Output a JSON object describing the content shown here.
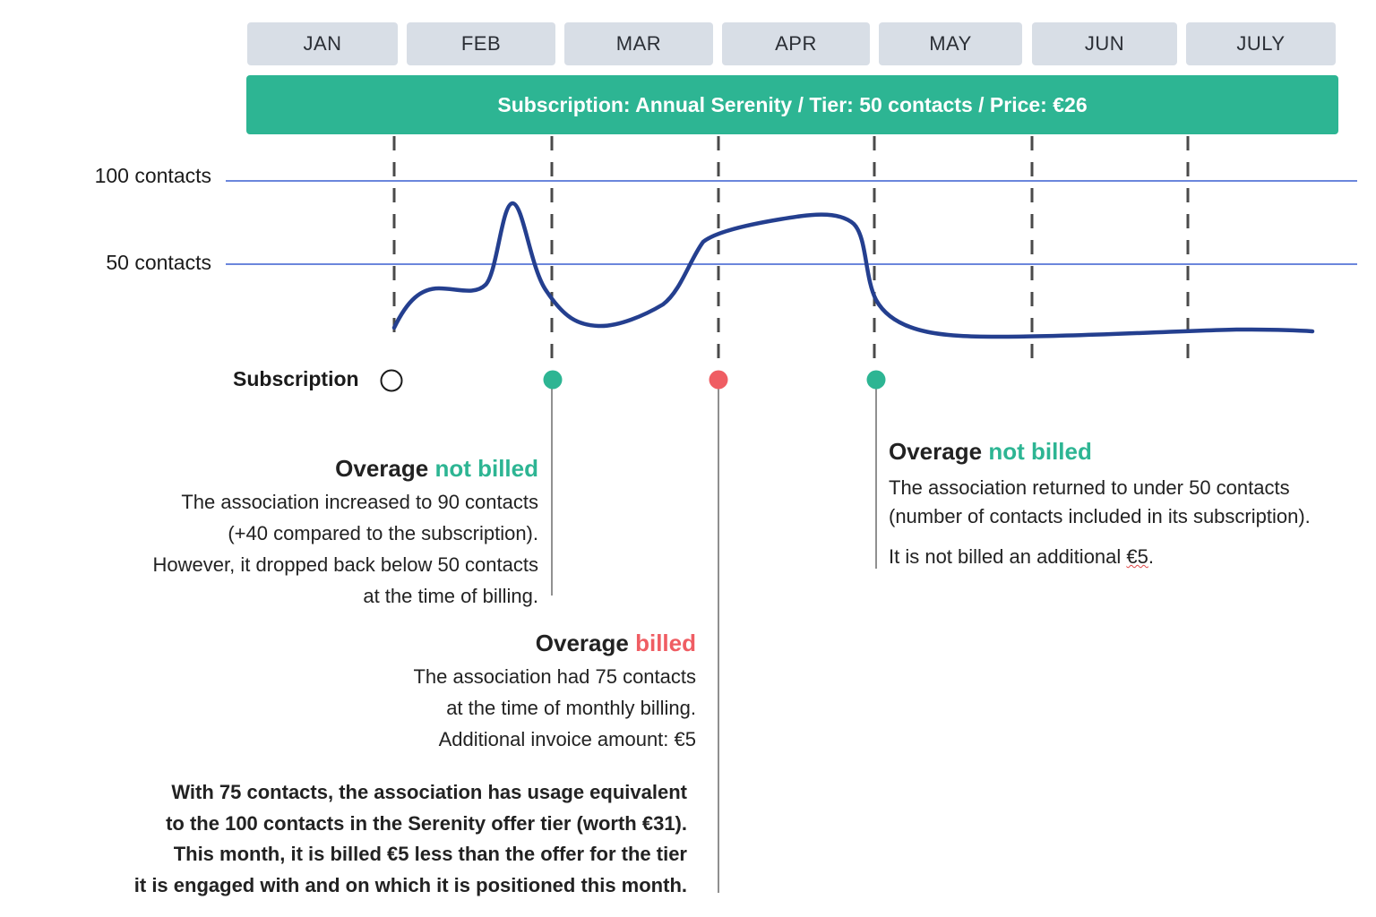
{
  "months": [
    "JAN",
    "FEB",
    "MAR",
    "APR",
    "MAY",
    "JUN",
    "JULY"
  ],
  "banner": "Subscription: Annual Serenity / Tier: 50 contacts / Price: €26",
  "thresholds": {
    "high_label": "100 contacts",
    "low_label": "50 contacts"
  },
  "subscription_label": "Subscription",
  "colors": {
    "accent_green": "#2db593",
    "accent_red": "#ef5d63",
    "curve": "#243f8f",
    "threshold_line": "#3a5fd0"
  },
  "markers": [
    {
      "month": "JAN",
      "status": "subscription-start"
    },
    {
      "month": "FEB",
      "status": "not-billed"
    },
    {
      "month": "MAR",
      "status": "billed"
    },
    {
      "month": "APR",
      "status": "not-billed"
    }
  ],
  "notes": {
    "feb": {
      "head_main": "Overage",
      "head_accent": "not billed",
      "lines": [
        "The association increased to 90 contacts",
        "(+40 compared to the subscription).",
        "However, it dropped back below 50 contacts",
        "at the time of billing."
      ]
    },
    "mar": {
      "head_main": "Overage",
      "head_accent": "billed",
      "lines": [
        "The association had 75 contacts",
        "at the time of monthly billing.",
        "Additional invoice amount: €5"
      ],
      "bold_lines": [
        "With 75 contacts, the association has usage equivalent",
        "to the 100 contacts in the Serenity offer tier (worth €31).",
        "This month, it is billed €5 less than the offer for the tier",
        "it is engaged with and on which it is positioned this month."
      ]
    },
    "apr": {
      "head_main": "Overage",
      "head_accent": "not billed",
      "line1": "The association returned to under 50 contacts",
      "line2": "(number of contacts included in its subscription).",
      "line3_prefix": "It is not billed an additional ",
      "line3_amount": "€5",
      "line3_suffix": "."
    }
  }
}
